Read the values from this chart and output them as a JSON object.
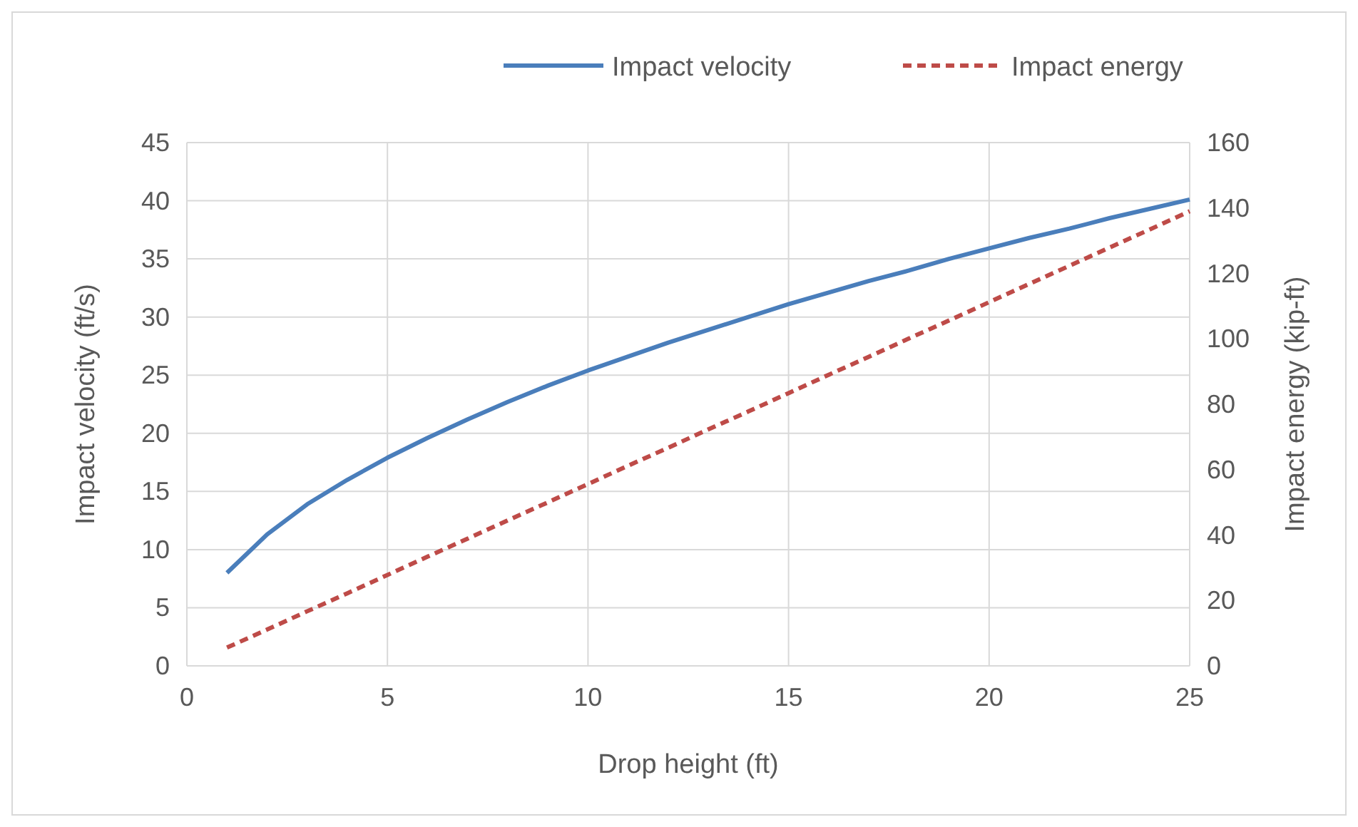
{
  "chart_data": {
    "type": "line",
    "xlabel": "Drop height (ft)",
    "ylabel": "Impact velocity (ft/s)",
    "y2label": "Impact energy (kip-ft)",
    "x": [
      1,
      2,
      3,
      4,
      5,
      6,
      7,
      8,
      9,
      10,
      11,
      12,
      13,
      14,
      15,
      16,
      17,
      18,
      19,
      20,
      21,
      22,
      23,
      24,
      25
    ],
    "series": [
      {
        "name": "Impact velocity",
        "color": "#4a7ebb",
        "line_style": "solid",
        "values": [
          8.0,
          11.3,
          13.9,
          16.0,
          17.9,
          19.6,
          21.2,
          22.7,
          24.1,
          25.4,
          26.6,
          27.8,
          28.9,
          30.0,
          31.1,
          32.1,
          33.1,
          34.0,
          35.0,
          35.9,
          36.8,
          37.6,
          38.5,
          39.3,
          40.1
        ]
      },
      {
        "name": "Impact energy",
        "color": "#be4b48",
        "line_style": "dashed",
        "axis": "y2",
        "values": [
          5.6,
          11.1,
          16.7,
          22.2,
          27.8,
          33.4,
          38.9,
          44.5,
          50.0,
          55.6,
          61.2,
          66.7,
          72.3,
          77.8,
          83.4,
          89.0,
          94.5,
          100.1,
          105.6,
          111.2,
          116.8,
          122.3,
          127.9,
          133.4,
          139.0
        ]
      }
    ],
    "xlim": [
      0,
      25
    ],
    "xticks": [
      0,
      5,
      10,
      15,
      20,
      25
    ],
    "ylim": [
      0,
      45
    ],
    "yticks": [
      0,
      5,
      10,
      15,
      20,
      25,
      30,
      35,
      40,
      45
    ],
    "y2lim": [
      0,
      160
    ],
    "y2ticks": [
      0,
      20,
      40,
      60,
      80,
      100,
      120,
      140,
      160
    ],
    "grid": true,
    "legend": "top",
    "marker": "none"
  }
}
